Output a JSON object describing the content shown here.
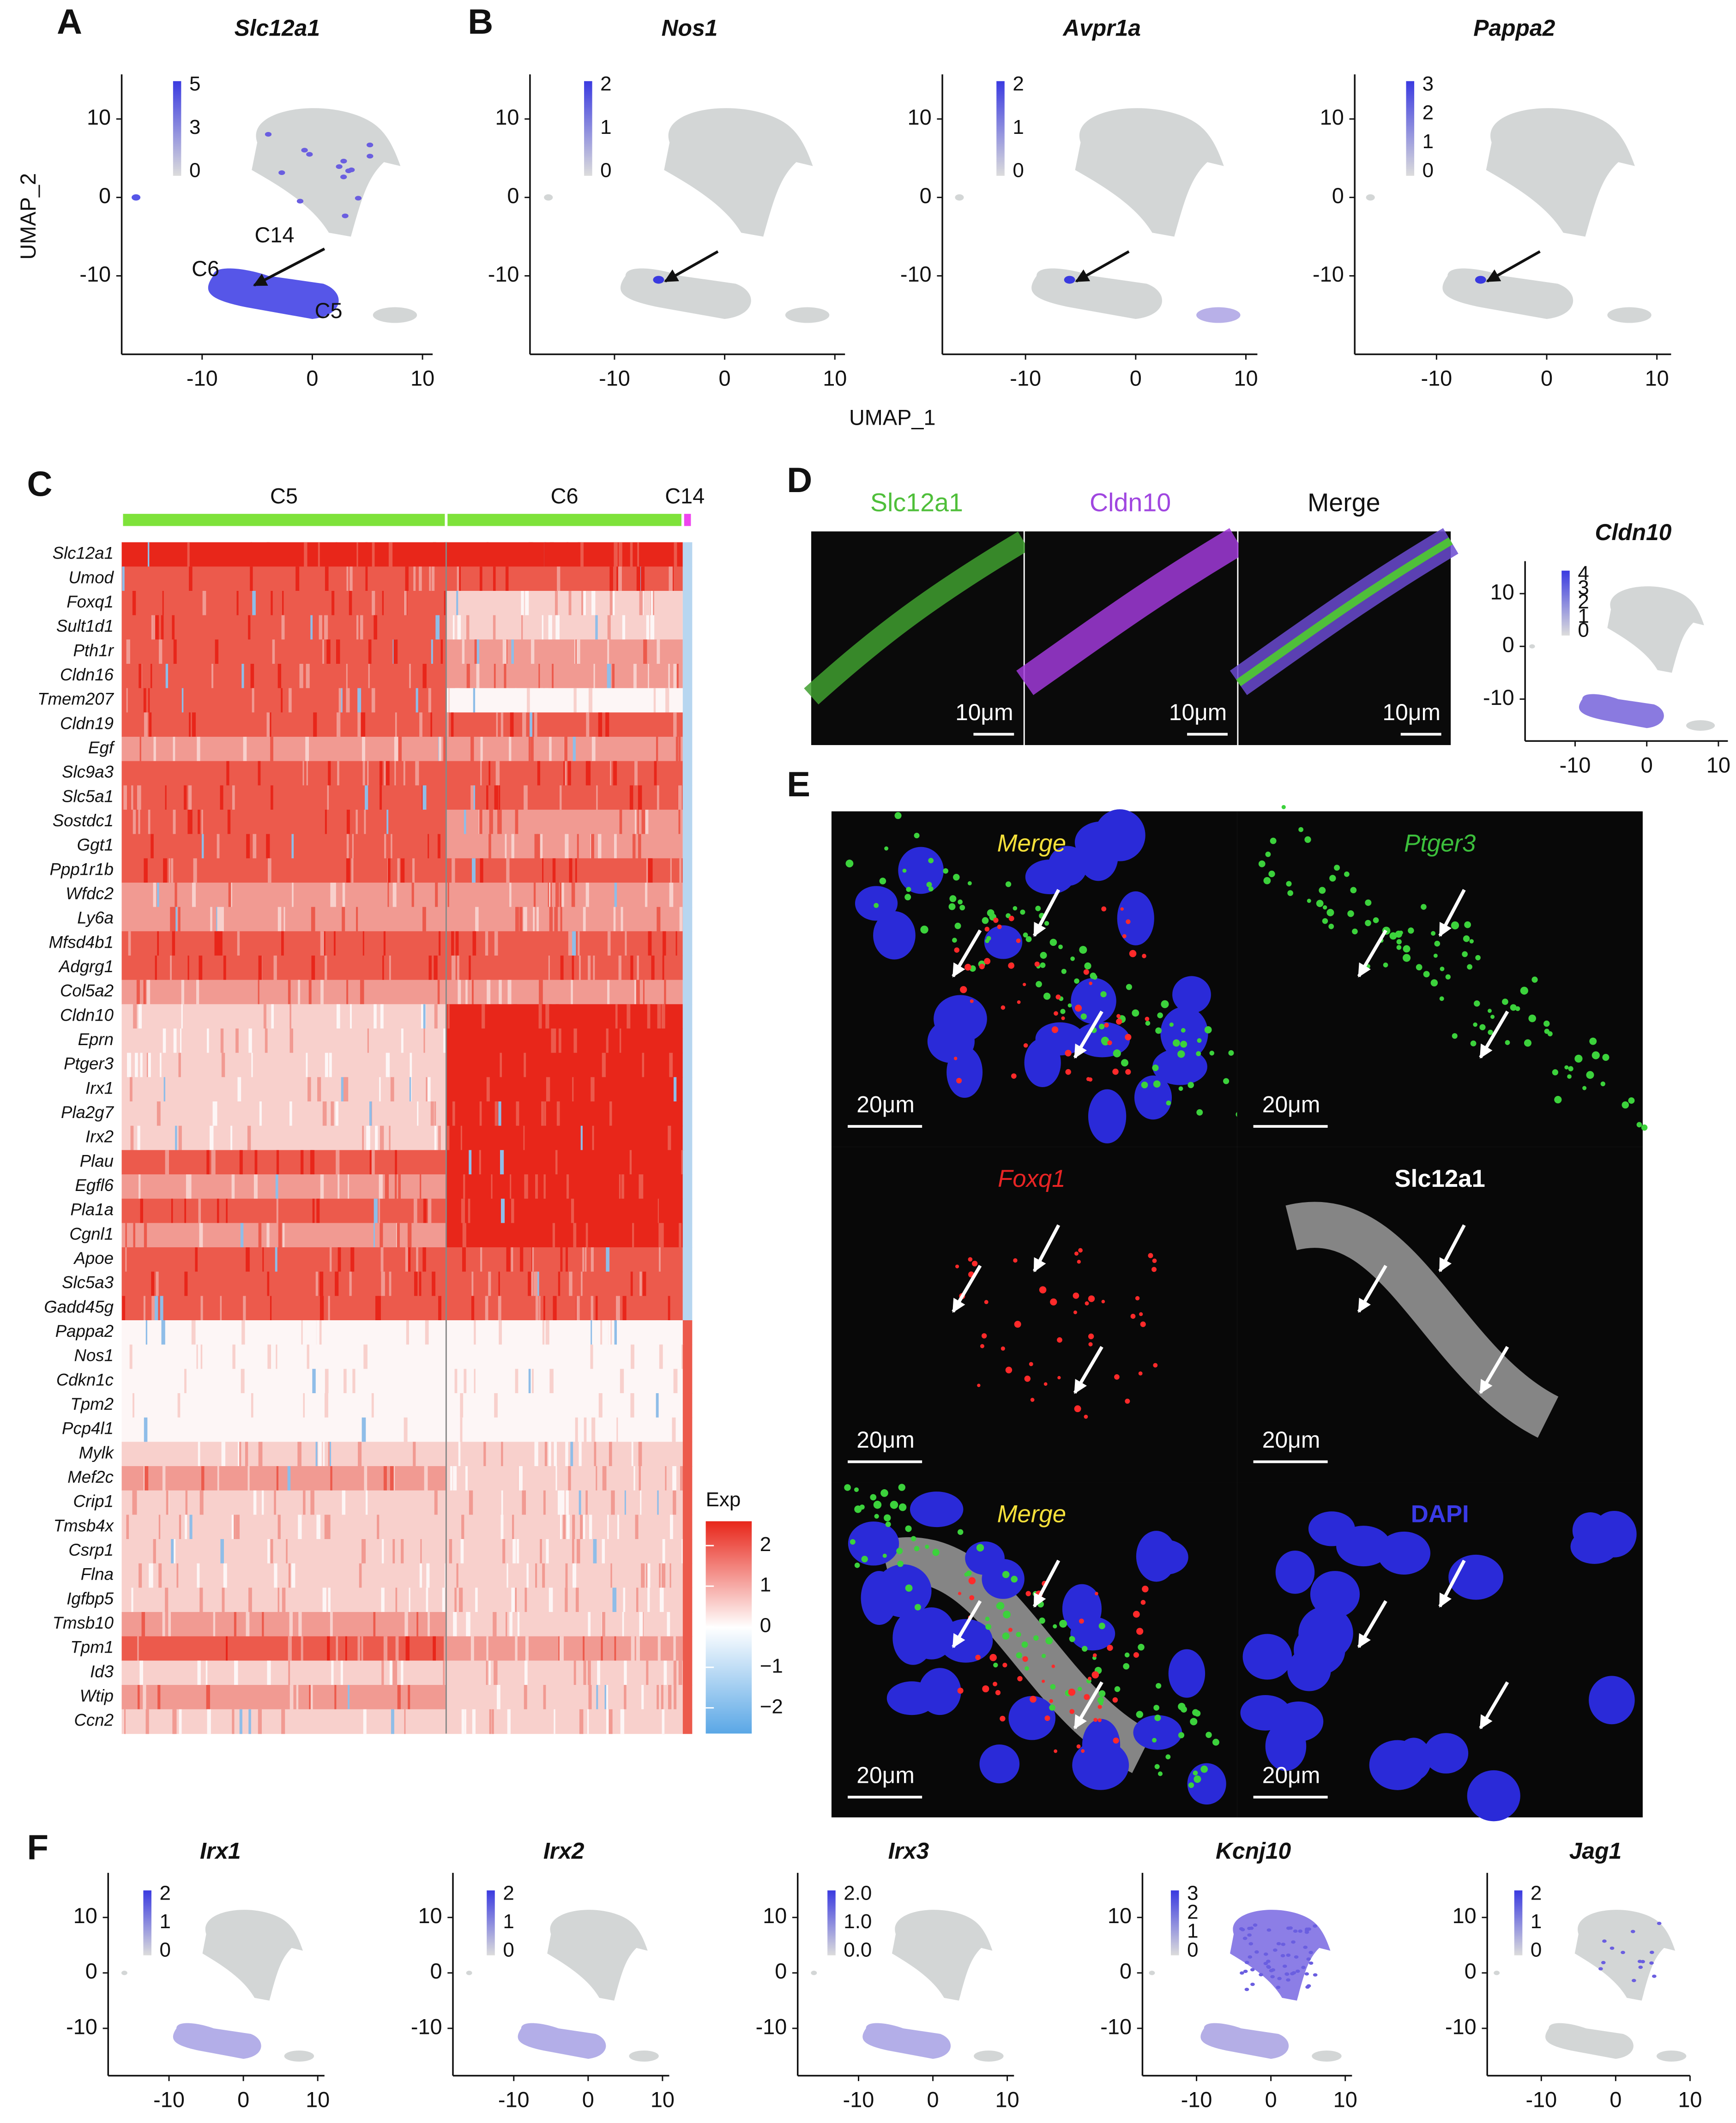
{
  "panel_labels": [
    "A",
    "B",
    "C",
    "D",
    "E",
    "F"
  ],
  "umap": {
    "xlabel": "UMAP_1",
    "ylabel": "UMAP_2",
    "xticks": [
      "-10",
      "0",
      "10"
    ],
    "yticks": [
      "10",
      "0",
      "-10"
    ],
    "plots": [
      {
        "title": "Slc12a1",
        "legend": [
          "5",
          "3",
          "0"
        ]
      },
      {
        "title": "Nos1",
        "legend": [
          "2",
          "1",
          "0"
        ]
      },
      {
        "title": "Avpr1a",
        "legend": [
          "2",
          "1",
          "0"
        ]
      },
      {
        "title": "Pappa2",
        "legend": [
          "3",
          "2",
          "1",
          "0"
        ]
      },
      {
        "title": "Cldn10",
        "legend": [
          "4",
          "3",
          "2",
          "1",
          "0"
        ]
      },
      {
        "title": "Irx1",
        "legend": [
          "2",
          "1",
          "0"
        ]
      },
      {
        "title": "Irx2",
        "legend": [
          "2",
          "1",
          "0"
        ]
      },
      {
        "title": "Irx3",
        "legend": [
          "2.0",
          "1.0",
          "0.0"
        ]
      },
      {
        "title": "Kcnj10",
        "legend": [
          "3",
          "2",
          "1",
          "0"
        ]
      },
      {
        "title": "Jag1",
        "legend": [
          "2",
          "1",
          "0"
        ]
      }
    ],
    "annotations": [
      "C14",
      "C6",
      "C5"
    ]
  },
  "heatmap": {
    "clusters": [
      "C5",
      "C6",
      "C14"
    ],
    "genes": [
      "Slc12a1",
      "Umod",
      "Foxq1",
      "Sult1d1",
      "Pth1r",
      "Cldn16",
      "Tmem207",
      "Cldn19",
      "Egf",
      "Slc9a3",
      "Slc5a1",
      "Sostdc1",
      "Ggt1",
      "Ppp1r1b",
      "Wfdc2",
      "Ly6a",
      "Mfsd4b1",
      "Adgrg1",
      "Col5a2",
      "Cldn10",
      "Eprn",
      "Ptger3",
      "Irx1",
      "Pla2g7",
      "Irx2",
      "Plau",
      "Egfl6",
      "Pla1a",
      "Cgnl1",
      "Apoe",
      "Slc5a3",
      "Gadd45g",
      "Pappa2",
      "Nos1",
      "Cdkn1c",
      "Tpm2",
      "Pcp4l1",
      "Mylk",
      "Mef2c",
      "Crip1",
      "Tmsb4x",
      "Csrp1",
      "Flna",
      "Igfbp5",
      "Tmsb10",
      "Tpm1",
      "Id3",
      "Wtip",
      "Ccn2"
    ],
    "legend_title": "Exp",
    "legend_ticks": [
      "2",
      "1",
      "0",
      "−1",
      "−2"
    ]
  },
  "microscopy_D": {
    "channels": [
      "Slc12a1",
      "Cldn10",
      "Merge"
    ],
    "scale_bar": "10μm"
  },
  "microscopy_E": {
    "panels": [
      "Merge",
      "Ptger3",
      "Foxq1",
      "Slc12a1",
      "Merge",
      "DAPI"
    ],
    "scale_bar": "20μm"
  }
}
